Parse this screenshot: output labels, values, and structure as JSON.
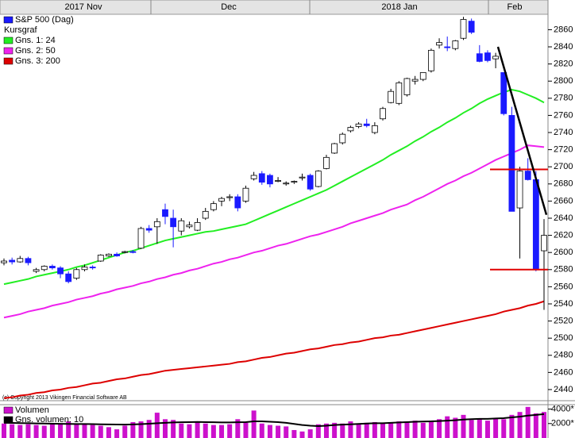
{
  "chart_data": {
    "type": "candlestick",
    "months": [
      "2017 Nov",
      "Dec",
      "2018 Jan",
      "Feb"
    ],
    "legend": [
      {
        "name": "S&P 500 (Dag)",
        "color": "#1a1aff"
      },
      {
        "name": "Kursgraf"
      }
    ],
    "ylim": [
      2427,
      2878
    ],
    "yticks": [
      2440,
      2460,
      2480,
      2500,
      2520,
      2540,
      2560,
      2580,
      2600,
      2620,
      2640,
      2660,
      2680,
      2700,
      2720,
      2740,
      2760,
      2780,
      2800,
      2820,
      2840,
      2860
    ],
    "candle_colors": {
      "up": "#ffffff",
      "down": "#1a1aff"
    },
    "candles": [
      [
        2588,
        2593,
        2585,
        2590
      ],
      [
        2591,
        2594,
        2586,
        2589
      ],
      [
        2589,
        2596,
        2588,
        2593
      ],
      [
        2593,
        2595,
        2585,
        2588
      ],
      [
        2578,
        2582,
        2576,
        2580
      ],
      [
        2580,
        2585,
        2578,
        2584
      ],
      [
        2584,
        2586,
        2580,
        2582
      ],
      [
        2582,
        2584,
        2570,
        2575
      ],
      [
        2575,
        2578,
        2564,
        2566
      ],
      [
        2570,
        2582,
        2568,
        2580
      ],
      [
        2580,
        2586,
        2578,
        2583
      ],
      [
        2583,
        2585,
        2580,
        2582
      ],
      [
        2590,
        2598,
        2589,
        2597
      ],
      [
        2596,
        2599,
        2595,
        2598
      ],
      [
        2598,
        2600,
        2595,
        2596
      ],
      [
        2600,
        2602,
        2599,
        2601
      ],
      [
        2601,
        2603,
        2599,
        2600
      ],
      [
        2605,
        2630,
        2604,
        2628
      ],
      [
        2628,
        2632,
        2623,
        2626
      ],
      [
        2630,
        2640,
        2610,
        2636
      ],
      [
        2650,
        2657,
        2633,
        2642
      ],
      [
        2640,
        2650,
        2606,
        2630
      ],
      [
        2625,
        2640,
        2620,
        2637
      ],
      [
        2630,
        2636,
        2628,
        2632
      ],
      [
        2626,
        2640,
        2625,
        2635
      ],
      [
        2640,
        2652,
        2638,
        2648
      ],
      [
        2650,
        2660,
        2648,
        2657
      ],
      [
        2660,
        2665,
        2654,
        2663
      ],
      [
        2664,
        2668,
        2660,
        2665
      ],
      [
        2665,
        2668,
        2648,
        2652
      ],
      [
        2660,
        2678,
        2658,
        2675
      ],
      [
        2686,
        2694,
        2684,
        2690
      ],
      [
        2692,
        2695,
        2679,
        2682
      ],
      [
        2690,
        2692,
        2676,
        2680
      ],
      [
        2683,
        2688,
        2682,
        2684
      ],
      [
        2680,
        2683,
        2678,
        2681
      ],
      [
        2682,
        2684,
        2680,
        2683
      ],
      [
        2687,
        2692,
        2684,
        2688
      ],
      [
        2690,
        2692,
        2672,
        2674
      ],
      [
        2677,
        2696,
        2676,
        2695
      ],
      [
        2698,
        2714,
        2697,
        2711
      ],
      [
        2716,
        2728,
        2715,
        2727
      ],
      [
        2728,
        2740,
        2726,
        2738
      ],
      [
        2742,
        2748,
        2740,
        2746
      ],
      [
        2747,
        2752,
        2745,
        2750
      ],
      [
        2750,
        2756,
        2746,
        2748
      ],
      [
        2740,
        2752,
        2738,
        2748
      ],
      [
        2756,
        2770,
        2754,
        2768
      ],
      [
        2775,
        2791,
        2774,
        2788
      ],
      [
        2774,
        2800,
        2772,
        2798
      ],
      [
        2784,
        2804,
        2782,
        2803
      ],
      [
        2800,
        2806,
        2796,
        2802
      ],
      [
        2802,
        2810,
        2800,
        2810
      ],
      [
        2812,
        2838,
        2810,
        2836
      ],
      [
        2842,
        2850,
        2838,
        2845
      ],
      [
        2840,
        2852,
        2835,
        2839
      ],
      [
        2838,
        2848,
        2836,
        2847
      ],
      [
        2850,
        2875,
        2848,
        2872
      ],
      [
        2870,
        2873,
        2855,
        2857
      ],
      [
        2832,
        2842,
        2822,
        2823
      ],
      [
        2833,
        2836,
        2822,
        2824
      ],
      [
        2826,
        2833,
        2815,
        2829
      ],
      [
        2810,
        2810,
        2760,
        2762
      ],
      [
        2760,
        2770,
        2650,
        2648
      ],
      [
        2652,
        2700,
        2593,
        2695
      ],
      [
        2695,
        2710,
        2684,
        2685
      ],
      [
        2685,
        2695,
        2578,
        2581
      ],
      [
        2602,
        2639,
        2533,
        2620
      ]
    ],
    "series": [
      {
        "name": "Gns. 1: 24",
        "color": "#22ee22",
        "values": [
          2563,
          2565,
          2567,
          2569,
          2572,
          2574,
          2576,
          2578,
          2580,
          2583,
          2585,
          2588,
          2591,
          2594,
          2597,
          2600,
          2602,
          2605,
          2608,
          2611,
          2614,
          2616,
          2618,
          2620,
          2622,
          2624,
          2625,
          2627,
          2629,
          2631,
          2633,
          2637,
          2641,
          2645,
          2649,
          2653,
          2657,
          2661,
          2665,
          2669,
          2673,
          2678,
          2683,
          2688,
          2693,
          2698,
          2703,
          2708,
          2714,
          2719,
          2724,
          2730,
          2735,
          2741,
          2746,
          2752,
          2757,
          2763,
          2768,
          2774,
          2779,
          2783,
          2787,
          2790,
          2788,
          2784,
          2780,
          2775
        ]
      },
      {
        "name": "Gns. 2: 50",
        "color": "#ee22ee",
        "values": [
          2524,
          2526,
          2528,
          2531,
          2533,
          2535,
          2538,
          2540,
          2542,
          2545,
          2547,
          2549,
          2552,
          2554,
          2557,
          2559,
          2561,
          2564,
          2566,
          2569,
          2571,
          2574,
          2576,
          2579,
          2581,
          2584,
          2587,
          2589,
          2592,
          2594,
          2597,
          2600,
          2602,
          2605,
          2608,
          2610,
          2613,
          2616,
          2619,
          2621,
          2624,
          2627,
          2630,
          2634,
          2637,
          2640,
          2643,
          2646,
          2650,
          2653,
          2656,
          2661,
          2665,
          2670,
          2675,
          2680,
          2684,
          2689,
          2693,
          2698,
          2703,
          2708,
          2712,
          2716,
          2720,
          2725,
          2724,
          2723
        ]
      },
      {
        "name": "Gns. 3: 200",
        "color": "#dd0000",
        "values": [
          2430,
          2431,
          2433,
          2434,
          2436,
          2437,
          2439,
          2440,
          2442,
          2443,
          2445,
          2447,
          2448,
          2450,
          2452,
          2453,
          2455,
          2457,
          2458,
          2460,
          2462,
          2463,
          2464,
          2465,
          2466,
          2467,
          2468,
          2469,
          2470,
          2472,
          2473,
          2475,
          2477,
          2478,
          2480,
          2482,
          2483,
          2485,
          2487,
          2488,
          2490,
          2492,
          2493,
          2495,
          2496,
          2498,
          2500,
          2501,
          2503,
          2504,
          2506,
          2508,
          2510,
          2512,
          2514,
          2516,
          2518,
          2520,
          2522,
          2524,
          2526,
          2528,
          2531,
          2533,
          2535,
          2538,
          2540,
          2543
        ]
      }
    ],
    "trendline": [
      2840,
      2644
    ],
    "levels": [
      2697,
      2580
    ],
    "copyright": "(c) Copyright 2013 Vikingen Financial Software AB",
    "volume": {
      "ylim": [
        0,
        4500
      ],
      "yticks": [
        {
          "value": 4000,
          "label": "4000*"
        },
        {
          "value": 2000,
          "label": "2000*"
        }
      ],
      "series": [
        {
          "name": "Volumen",
          "color": "#cc11cc",
          "values": [
            2000,
            1900,
            1800,
            1900,
            1800,
            1700,
            1900,
            2000,
            2300,
            2000,
            1900,
            1800,
            1700,
            1500,
            1200,
            1700,
            2200,
            2300,
            2500,
            3500,
            2600,
            2500,
            2000,
            1900,
            2200,
            2000,
            1800,
            1800,
            1900,
            2600,
            2100,
            3800,
            2000,
            1800,
            1700,
            1600,
            1100,
            900,
            1200,
            1900,
            2000,
            2100,
            2000,
            2300,
            2000,
            2100,
            2200,
            2000,
            2100,
            2300,
            2200,
            2400,
            2100,
            2400,
            2600,
            3000,
            2800,
            3200,
            2500,
            2600,
            2400,
            2700,
            2600,
            3200,
            3600,
            4300,
            3400,
            3600
          ]
        },
        {
          "name": "Gns. volumen: 10",
          "color": "#000000",
          "values": [
            2100,
            2080,
            2060,
            2040,
            2020,
            2000,
            1980,
            1960,
            1950,
            1940,
            1930,
            1920,
            1900,
            1880,
            1860,
            1850,
            1880,
            1920,
            1980,
            2050,
            2100,
            2150,
            2180,
            2200,
            2220,
            2200,
            2180,
            2160,
            2150,
            2180,
            2200,
            2300,
            2300,
            2250,
            2200,
            2100,
            1950,
            1800,
            1700,
            1650,
            1700,
            1800,
            1850,
            1900,
            1950,
            2000,
            2050,
            2050,
            2100,
            2150,
            2200,
            2250,
            2280,
            2300,
            2350,
            2400,
            2450,
            2550,
            2600,
            2650,
            2650,
            2700,
            2750,
            2850,
            2950,
            3100,
            3200,
            3300
          ]
        }
      ]
    }
  }
}
